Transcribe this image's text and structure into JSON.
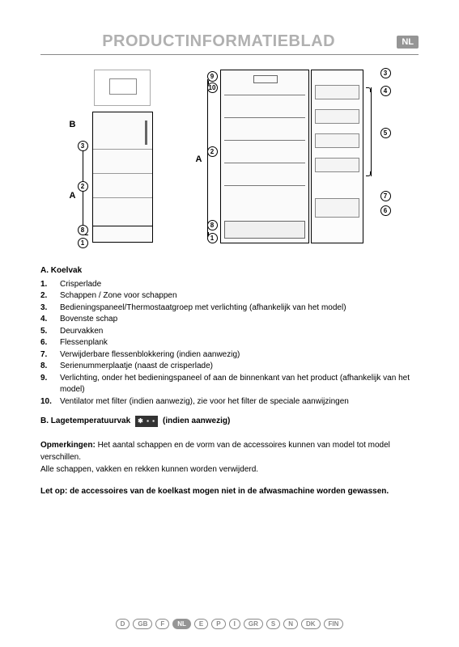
{
  "header": {
    "title": "PRODUCTINFORMATIEBLAD",
    "lang_badge": "NL"
  },
  "diagram": {
    "letters": {
      "A": "A",
      "B": "B"
    },
    "callouts": [
      "1",
      "2",
      "3",
      "4",
      "5",
      "6",
      "7",
      "8",
      "9",
      "10"
    ]
  },
  "legend": {
    "sectionA": {
      "head": "A.  Koelvak"
    },
    "items": [
      {
        "n": "1.",
        "t": "Crisperlade"
      },
      {
        "n": "2.",
        "t": "Schappen / Zone voor schappen"
      },
      {
        "n": "3.",
        "t": "Bedieningspaneel/Thermostaatgroep met verlichting (afhankelijk van het model)"
      },
      {
        "n": "4.",
        "t": "Bovenste schap"
      },
      {
        "n": "5.",
        "t": "Deurvakken"
      },
      {
        "n": "6.",
        "t": "Flessenplank"
      },
      {
        "n": "7.",
        "t": "Verwijderbare flessenblokkering (indien aanwezig)"
      },
      {
        "n": "8.",
        "t": "Serienummerplaatje (naast de crisperlade)"
      },
      {
        "n": "9.",
        "t": "Verlichting, onder het bedieningspaneel of aan de binnenkant van het product (afhankelijk van het model)"
      },
      {
        "n": "10.",
        "t": "Ventilator met filter (indien aanwezig), zie voor het filter de speciale aanwijzingen"
      }
    ],
    "sectionB": {
      "head_pre": "B.  Lagetemperatuurvak",
      "head_post": "(indien aanwezig)",
      "icon": "✱ ▪ ▪"
    }
  },
  "notes": {
    "head": "Opmerkingen:",
    "line1": " Het aantal schappen en de vorm van de accessoires kunnen van model tot model verschillen.",
    "line2": "Alle schappen, vakken en rekken kunnen worden verwijderd."
  },
  "warning": "Let op: de accessoires van de koelkast mogen niet in de afwasmachine worden gewassen.",
  "footer_langs": [
    "D",
    "GB",
    "F",
    "NL",
    "E",
    "P",
    "I",
    "GR",
    "S",
    "N",
    "DK",
    "FIN"
  ],
  "footer_active": "NL"
}
